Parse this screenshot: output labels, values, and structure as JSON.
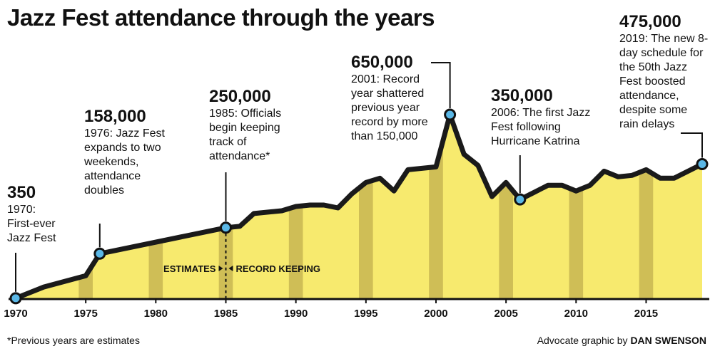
{
  "chart_data": {
    "type": "area",
    "title": "Jazz Fest attendance through the years",
    "x": [
      1970,
      1972,
      1975,
      1976,
      1985,
      1986,
      1987,
      1989,
      1990,
      1991,
      1992,
      1993,
      1994,
      1995,
      1996,
      1997,
      1998,
      1999,
      2000,
      2001,
      2002,
      2003,
      2004,
      2005,
      2006,
      2007,
      2008,
      2009,
      2010,
      2011,
      2012,
      2013,
      2014,
      2015,
      2016,
      2017,
      2019
    ],
    "values": [
      350,
      40000,
      80000,
      158000,
      250000,
      255000,
      300000,
      310000,
      325000,
      330000,
      330000,
      320000,
      370000,
      410000,
      425000,
      380000,
      455000,
      460000,
      465000,
      650000,
      510000,
      470000,
      360000,
      410000,
      350000,
      375000,
      400000,
      400000,
      380000,
      400000,
      450000,
      430000,
      435000,
      455000,
      425000,
      425000,
      475000
    ],
    "xticks": [
      1970,
      1975,
      1980,
      1985,
      1990,
      1995,
      2000,
      2005,
      2010,
      2015
    ],
    "xlim": [
      1970,
      2019
    ],
    "ylim": [
      0,
      650000
    ],
    "xlabel": "",
    "ylabel": "",
    "divider_year": 1985,
    "divider_left_label": "ESTIMATES",
    "divider_right_label": "RECORD KEEPING",
    "annotations": [
      {
        "year": 1970,
        "value": "350",
        "text": "1970: First-ever Jazz Fest"
      },
      {
        "year": 1976,
        "value": "158,000",
        "text": "1976: Jazz Fest expands to two weekends, attendance doubles"
      },
      {
        "year": 1985,
        "value": "250,000",
        "text": "1985: Officials begin keeping track of attendance*"
      },
      {
        "year": 2001,
        "value": "650,000",
        "text": "2001: Record year shattered previous year record by more than 150,000"
      },
      {
        "year": 2006,
        "value": "350,000",
        "text": "2006: The first Jazz Fest following Hurricane Katrina"
      },
      {
        "year": 2019,
        "value": "475,000",
        "text": "2019: The new 8-day schedule for the 50th Jazz Fest boosted attendance, despite some rain delays"
      }
    ],
    "colors": {
      "fill": "#f7ea6e",
      "band": "#cfbe56",
      "line": "#1a1a1a",
      "marker": "#5ab7e6"
    }
  },
  "footnote": "*Previous years are estimates",
  "credit": {
    "prefix": "Advocate graphic by",
    "name": "DAN SWENSON"
  }
}
